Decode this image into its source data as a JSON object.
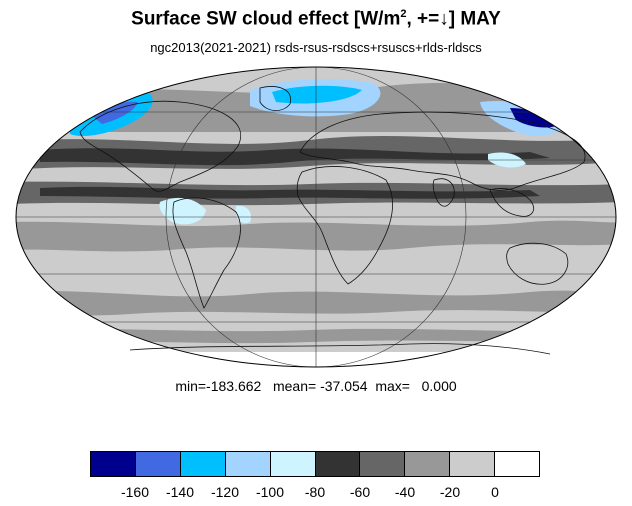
{
  "title": {
    "main": "Surface SW cloud effect [W/m",
    "superscript": "2",
    "rest": ", +=↓]  MAY"
  },
  "subtitle": "ngc2013(2021-2021)  rsds-rsus-rsdscs+rsuscs+rlds-rldscs",
  "stats": "min=-183.662   mean= -37.054  max=   0.000",
  "colorbar": {
    "colors": [
      "#00008f",
      "#4169e1",
      "#00bfff",
      "#a3d3ff",
      "#cef4ff",
      "#333333",
      "#666666",
      "#989898",
      "#cccccc",
      "#ffffff"
    ],
    "labels": [
      "-160",
      "-140",
      "-120",
      "-100",
      "-80",
      "-60",
      "-40",
      "-20",
      "0"
    ]
  },
  "map": {
    "projection": "Mollweide",
    "colors": {
      "ocean_base": "#cccccc",
      "band_dark": "#989898",
      "band_darker": "#666666",
      "band_darkest": "#333333",
      "light_blue": "#a3d3ff",
      "pale_blue": "#cef4ff",
      "medium_blue": "#00bfff",
      "royal_blue": "#4169e1",
      "navy": "#00008f",
      "antarctic": "#ffffff"
    }
  }
}
